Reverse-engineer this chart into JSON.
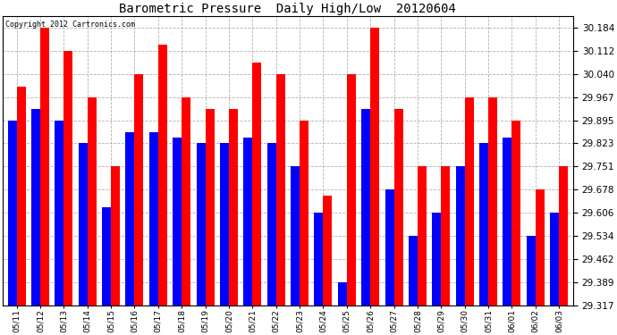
{
  "title": "Barometric Pressure  Daily High/Low  20120604",
  "copyright": "Copyright 2012 Cartronics.com",
  "dates": [
    "05/11",
    "05/12",
    "05/13",
    "05/14",
    "05/15",
    "05/16",
    "05/17",
    "05/18",
    "05/19",
    "05/20",
    "05/21",
    "05/22",
    "05/23",
    "05/24",
    "05/25",
    "05/26",
    "05/27",
    "05/28",
    "05/29",
    "05/30",
    "05/31",
    "06/01",
    "06/02",
    "06/03"
  ],
  "highs": [
    30.0,
    30.184,
    30.112,
    29.967,
    29.751,
    30.04,
    30.13,
    29.967,
    29.93,
    29.93,
    30.075,
    30.04,
    29.895,
    29.66,
    30.04,
    30.184,
    29.93,
    29.751,
    29.751,
    29.967,
    29.967,
    29.895,
    29.678,
    29.751
  ],
  "lows": [
    29.895,
    29.93,
    29.895,
    29.823,
    29.623,
    29.858,
    29.858,
    29.84,
    29.823,
    29.823,
    29.84,
    29.823,
    29.751,
    29.606,
    29.389,
    29.93,
    29.678,
    29.534,
    29.606,
    29.751,
    29.823,
    29.84,
    29.534,
    29.606
  ],
  "high_color": "#ff0000",
  "low_color": "#0000ff",
  "bg_color": "#ffffff",
  "grid_color": "#b0b0b0",
  "yticks": [
    29.317,
    29.389,
    29.462,
    29.534,
    29.606,
    29.678,
    29.751,
    29.823,
    29.895,
    29.967,
    30.04,
    30.112,
    30.184
  ],
  "ymin": 29.317,
  "ymax": 30.22,
  "bar_width": 0.38
}
